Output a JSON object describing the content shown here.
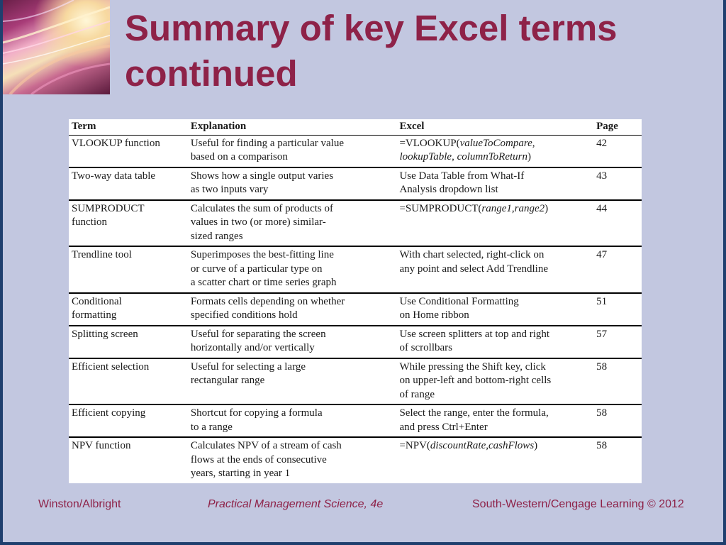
{
  "slide": {
    "title_line1": "Summary of key Excel terms",
    "title_line2": "continued"
  },
  "table": {
    "headers": [
      "Term",
      "Explanation",
      "Excel",
      "Page"
    ],
    "rows": [
      {
        "term": [
          "VLOOKUP function"
        ],
        "explanation": [
          "Useful for finding a particular value",
          "based on a comparison"
        ],
        "excel": [
          [
            {
              "t": "=VLOOKUP(",
              "i": false
            },
            {
              "t": "valueToCompare",
              "i": true
            },
            {
              "t": ",",
              "i": false
            }
          ],
          [
            {
              "t": "lookupTable",
              "i": true
            },
            {
              "t": ", ",
              "i": false
            },
            {
              "t": "columnToReturn",
              "i": true
            },
            {
              "t": ")",
              "i": false
            }
          ]
        ],
        "page": "42"
      },
      {
        "term": [
          "Two-way data table"
        ],
        "explanation": [
          "Shows how a single output varies",
          "as two inputs vary"
        ],
        "excel": [
          [
            {
              "t": "Use Data Table from What-If",
              "i": false
            }
          ],
          [
            {
              "t": "Analysis dropdown list",
              "i": false
            }
          ]
        ],
        "page": "43"
      },
      {
        "term": [
          "SUMPRODUCT",
          "function"
        ],
        "explanation": [
          "Calculates the sum of products of",
          "values in two (or more) similar-",
          "sized ranges"
        ],
        "excel": [
          [
            {
              "t": "=SUMPRODUCT(",
              "i": false
            },
            {
              "t": "range1",
              "i": true
            },
            {
              "t": ",",
              "i": false
            },
            {
              "t": "range2",
              "i": true
            },
            {
              "t": ")",
              "i": false
            }
          ]
        ],
        "page": "44"
      },
      {
        "term": [
          "Trendline tool"
        ],
        "explanation": [
          "Superimposes the best-fitting line",
          "or curve of a particular type on",
          "a scatter chart or time series graph"
        ],
        "excel": [
          [
            {
              "t": "With chart selected, right-click on",
              "i": false
            }
          ],
          [
            {
              "t": "any point and select Add Trendline",
              "i": false
            }
          ]
        ],
        "page": "47"
      },
      {
        "term": [
          "Conditional",
          "formatting"
        ],
        "explanation": [
          "Formats cells depending on whether",
          "specified conditions hold"
        ],
        "excel": [
          [
            {
              "t": "Use Conditional Formatting",
              "i": false
            }
          ],
          [
            {
              "t": "on Home ribbon",
              "i": false
            }
          ]
        ],
        "page": "51"
      },
      {
        "term": [
          "Splitting screen"
        ],
        "explanation": [
          "Useful for separating the screen",
          "horizontally and/or vertically"
        ],
        "excel": [
          [
            {
              "t": "Use screen splitters at top and right",
              "i": false
            }
          ],
          [
            {
              "t": "of scrollbars",
              "i": false
            }
          ]
        ],
        "page": "57"
      },
      {
        "term": [
          "Efficient selection"
        ],
        "explanation": [
          "Useful for selecting a large",
          "rectangular range"
        ],
        "excel": [
          [
            {
              "t": "While pressing the Shift key, click",
              "i": false
            }
          ],
          [
            {
              "t": "on upper-left and bottom-right cells",
              "i": false
            }
          ],
          [
            {
              "t": "of range",
              "i": false
            }
          ]
        ],
        "page": "58"
      },
      {
        "term": [
          "Efficient copying"
        ],
        "explanation": [
          "Shortcut for copying a formula",
          "to a range"
        ],
        "excel": [
          [
            {
              "t": "Select the range, enter the formula,",
              "i": false
            }
          ],
          [
            {
              "t": "and press Ctrl+Enter",
              "i": false
            }
          ]
        ],
        "page": "58"
      },
      {
        "term": [
          "NPV function"
        ],
        "explanation": [
          "Calculates NPV of a stream of cash",
          "flows at the ends of consecutive",
          "years, starting in year 1"
        ],
        "excel": [
          [
            {
              "t": "=NPV(",
              "i": false
            },
            {
              "t": "discountRate",
              "i": true
            },
            {
              "t": ",",
              "i": false
            },
            {
              "t": "cashFlows",
              "i": true
            },
            {
              "t": ")",
              "i": false
            }
          ]
        ],
        "page": "58"
      }
    ]
  },
  "footer": {
    "left": "Winston/Albright",
    "center": "Practical Management Science, 4e",
    "right": "South-Western/Cengage Learning © 2012"
  },
  "colors": {
    "background": "#c2c7e0",
    "frame": "#1f3f6e",
    "title": "#8e2248",
    "footer": "#8e2248"
  }
}
